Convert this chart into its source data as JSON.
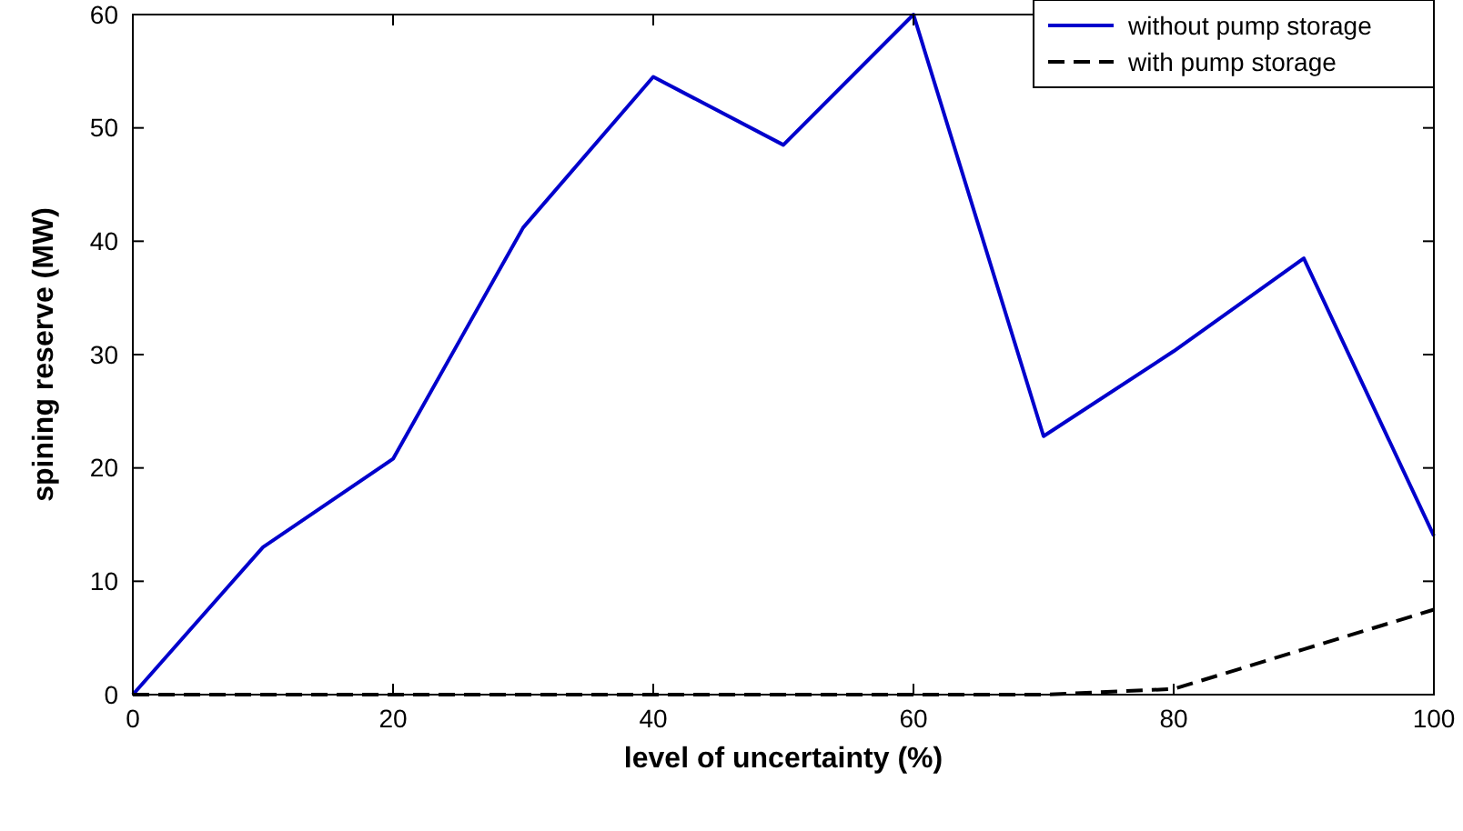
{
  "chart_data": {
    "type": "line",
    "xlabel": "level of uncertainty (%)",
    "ylabel": "spining reserve (MW)",
    "x": [
      0,
      10,
      20,
      30,
      40,
      50,
      60,
      70,
      80,
      90,
      100
    ],
    "series": [
      {
        "name": "without pump storage",
        "color": "#0000cc",
        "line_style": "solid",
        "values": [
          0,
          13,
          20.8,
          41.2,
          54.5,
          48.5,
          60,
          22.8,
          30.3,
          38.5,
          14
        ]
      },
      {
        "name": "with pump storage",
        "color": "#000000",
        "line_style": "dashed",
        "values": [
          0,
          0,
          0,
          0,
          0,
          0,
          0,
          0,
          0.5,
          4,
          7.5
        ]
      }
    ],
    "xlim": [
      0,
      100
    ],
    "xticks": [
      0,
      20,
      40,
      60,
      80,
      100
    ],
    "ylim": [
      0,
      60
    ],
    "yticks": [
      0,
      10,
      20,
      30,
      40,
      50,
      60
    ],
    "grid": false,
    "legend": "top right",
    "marker": "none"
  }
}
